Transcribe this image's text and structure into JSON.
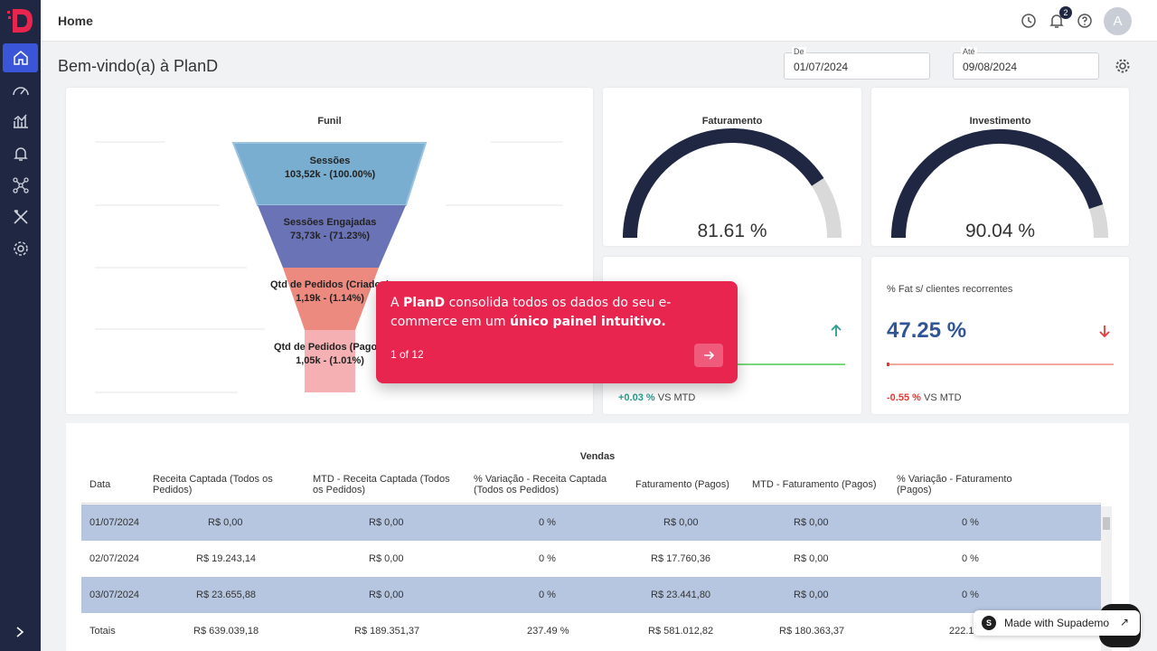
{
  "header": {
    "title": "Home",
    "notifications_count": "2",
    "avatar_letter": "A"
  },
  "welcome": "Bem-vindo(a) à PlanD",
  "filters": {
    "from": {
      "label": "De",
      "value": "01/07/2024"
    },
    "to": {
      "label": "Até",
      "value": "09/08/2024"
    }
  },
  "sidebar": {
    "items": [
      "home-icon",
      "dashboard-icon",
      "analytics-icon",
      "bell-icon",
      "network-icon",
      "tools-icon",
      "settings-icon"
    ],
    "active": "home-icon"
  },
  "funnel": {
    "title": "Funil",
    "stages": [
      {
        "name": "Sessões",
        "value": "103,52k - (100.00%)",
        "color": "#7aaed0"
      },
      {
        "name": "Sessões Engajadas",
        "value": "73,73k - (71.23%)",
        "color": "#6b73b7"
      },
      {
        "name": "Qtd de Pedidos (Criados)",
        "value": "1,19k - (1.14%)",
        "color": "#ec8a80"
      },
      {
        "name": "Qtd de Pedidos (Pagos)",
        "value": "1,05k - (1.01%)",
        "color": "#f4b0b3"
      }
    ]
  },
  "gauges": [
    {
      "title": "Faturamento",
      "value": "81.61 %",
      "fraction": 0.8161
    },
    {
      "title": "Investimento",
      "value": "90.04 %",
      "fraction": 0.9004
    }
  ],
  "kpis": [
    {
      "title": "",
      "value": "",
      "trend": "up",
      "delta": "+0.03 %",
      "suffix": "VS MTD"
    },
    {
      "title": "% Fat s/ clientes recorrentes",
      "value": "47.25 %",
      "trend": "down",
      "delta": "-0.55 %",
      "suffix": "VS MTD"
    }
  ],
  "table": {
    "title": "Vendas",
    "headers": [
      "Data",
      "Receita Captada (Todos os Pedidos)",
      "MTD - Receita Captada (Todos os Pedidos)",
      "% Variação - Receita Captada (Todos os Pedidos)",
      "Faturamento (Pagos)",
      "MTD - Faturamento (Pagos)",
      "% Variação - Faturamento (Pagos)"
    ],
    "rows": [
      [
        "01/07/2024",
        "R$ 0,00",
        "R$ 0,00",
        "0 %",
        "R$ 0,00",
        "R$ 0,00",
        "0 %"
      ],
      [
        "02/07/2024",
        "R$ 19.243,14",
        "R$ 0,00",
        "0 %",
        "R$ 17.760,36",
        "R$ 0,00",
        "0 %"
      ],
      [
        "03/07/2024",
        "R$ 23.655,88",
        "R$ 0,00",
        "0 %",
        "R$ 23.441,80",
        "R$ 0,00",
        "0 %"
      ]
    ],
    "totals": [
      "Totais",
      "R$ 639.039,18",
      "R$ 189.351,37",
      "237.49 %",
      "R$ 581.012,82",
      "R$ 180.363,37",
      "222.1"
    ]
  },
  "tour": {
    "msg_a": "A ",
    "brand": "PlanD",
    "msg_b": " consolida todos os dados do seu e-commerce em um ",
    "msg_bold": "único painel intuitivo.",
    "step": "1 of 12"
  },
  "supademo": {
    "text": "Made with Supademo",
    "logo": "S"
  }
}
